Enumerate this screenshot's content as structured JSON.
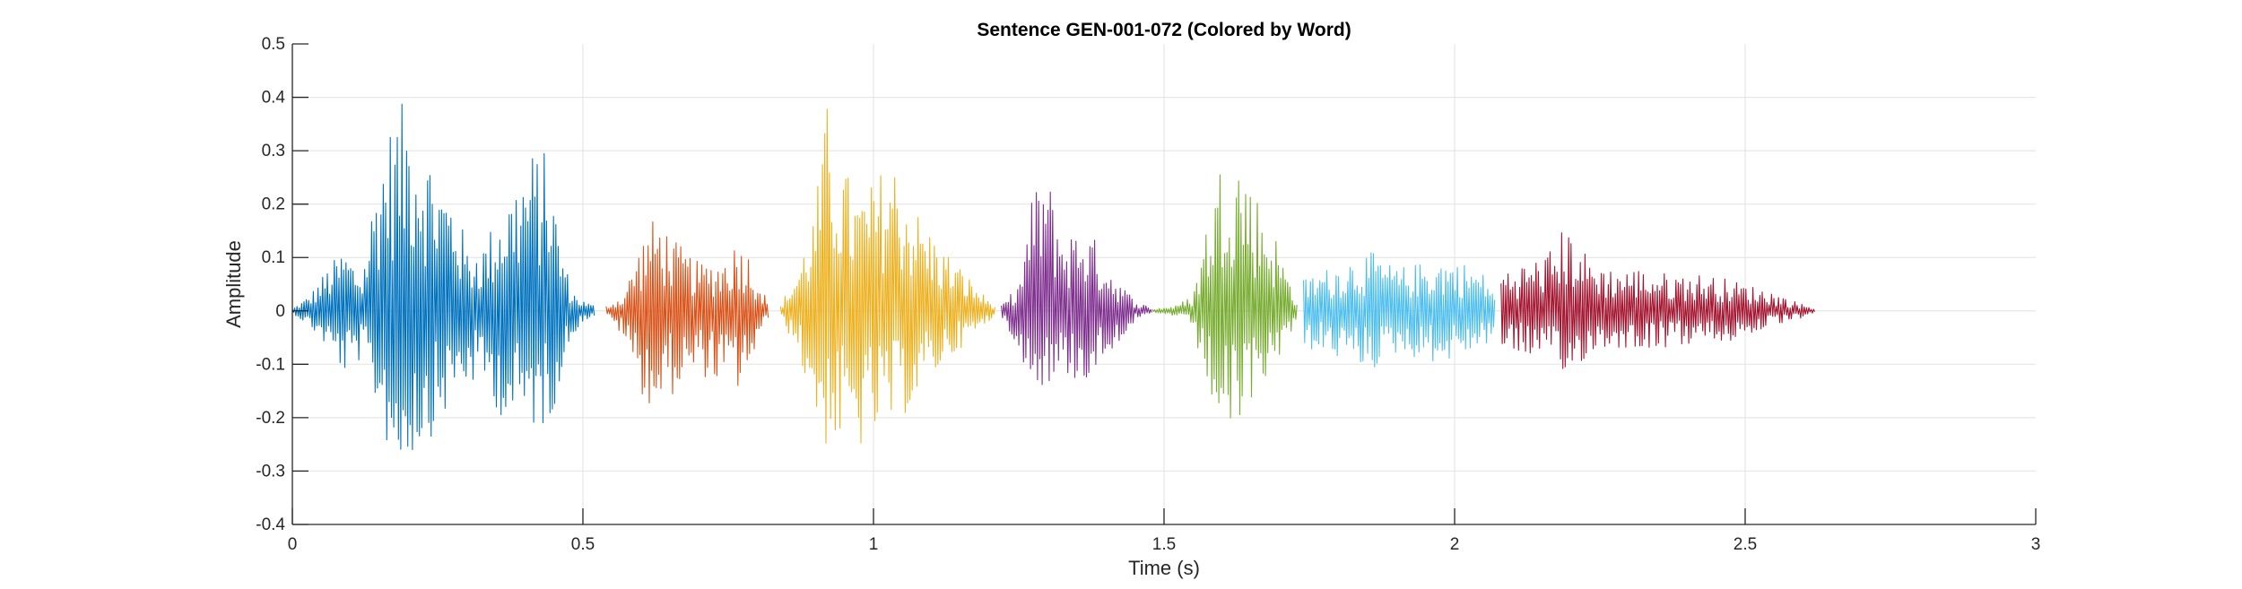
{
  "chart_data": {
    "type": "line",
    "title": "Sentence GEN-001-072 (Colored by Word)",
    "xlabel": "Time (s)",
    "ylabel": "Amplitude",
    "xlim": [
      0,
      3
    ],
    "ylim": [
      -0.4,
      0.5
    ],
    "xticks": [
      0,
      0.5,
      1,
      1.5,
      2,
      2.5,
      3
    ],
    "xtick_labels": [
      "0",
      "0.5",
      "1",
      "1.5",
      "2",
      "2.5",
      "3"
    ],
    "yticks": [
      -0.4,
      -0.3,
      -0.2,
      -0.1,
      0,
      0.1,
      0.2,
      0.3,
      0.4,
      0.5
    ],
    "ytick_labels": [
      "-0.4",
      "-0.3",
      "-0.2",
      "-0.1",
      "0",
      "0.1",
      "0.2",
      "0.3",
      "0.4",
      "0.5"
    ],
    "grid": true,
    "series": [
      {
        "color": "#0072BD",
        "start": 0.0,
        "end": 0.52,
        "envelope_time": [
          0.0,
          0.03,
          0.06,
          0.09,
          0.12,
          0.15,
          0.18,
          0.2,
          0.22,
          0.25,
          0.28,
          0.3,
          0.33,
          0.36,
          0.38,
          0.41,
          0.44,
          0.46,
          0.48,
          0.5,
          0.52
        ],
        "envelope_max": [
          0.004,
          0.03,
          0.08,
          0.12,
          0.07,
          0.3,
          0.38,
          0.4,
          0.35,
          0.26,
          0.22,
          0.12,
          0.13,
          0.2,
          0.24,
          0.3,
          0.3,
          0.14,
          0.04,
          0.02,
          0.01
        ],
        "envelope_min": [
          -0.004,
          -0.03,
          -0.07,
          -0.12,
          -0.09,
          -0.2,
          -0.32,
          -0.28,
          -0.26,
          -0.22,
          -0.16,
          -0.14,
          -0.14,
          -0.2,
          -0.22,
          -0.22,
          -0.22,
          -0.14,
          -0.05,
          -0.02,
          -0.01
        ]
      },
      {
        "color": "#D95319",
        "start": 0.54,
        "end": 0.82,
        "envelope_time": [
          0.54,
          0.57,
          0.59,
          0.61,
          0.63,
          0.66,
          0.7,
          0.74,
          0.77,
          0.79,
          0.81,
          0.82
        ],
        "envelope_max": [
          0.01,
          0.03,
          0.1,
          0.16,
          0.18,
          0.13,
          0.09,
          0.1,
          0.14,
          0.1,
          0.04,
          0.01
        ],
        "envelope_min": [
          -0.01,
          -0.05,
          -0.12,
          -0.18,
          -0.19,
          -0.15,
          -0.12,
          -0.14,
          -0.15,
          -0.1,
          -0.04,
          -0.01
        ]
      },
      {
        "color": "#EDB120",
        "start": 0.84,
        "end": 1.21,
        "envelope_time": [
          0.84,
          0.87,
          0.9,
          0.92,
          0.94,
          0.97,
          1.0,
          1.03,
          1.05,
          1.08,
          1.12,
          1.16,
          1.19,
          1.21
        ],
        "envelope_max": [
          0.01,
          0.08,
          0.2,
          0.39,
          0.3,
          0.22,
          0.24,
          0.3,
          0.25,
          0.18,
          0.12,
          0.07,
          0.03,
          0.01
        ],
        "envelope_min": [
          -0.01,
          -0.08,
          -0.2,
          -0.26,
          -0.25,
          -0.27,
          -0.24,
          -0.22,
          -0.2,
          -0.16,
          -0.1,
          -0.06,
          -0.03,
          -0.01
        ]
      },
      {
        "color": "#7E2F8E",
        "start": 1.22,
        "end": 1.48,
        "envelope_time": [
          1.22,
          1.25,
          1.27,
          1.29,
          1.31,
          1.33,
          1.36,
          1.39,
          1.42,
          1.45,
          1.48
        ],
        "envelope_max": [
          0.01,
          0.05,
          0.2,
          0.28,
          0.22,
          0.14,
          0.17,
          0.12,
          0.06,
          0.02,
          0.005
        ],
        "envelope_min": [
          -0.01,
          -0.07,
          -0.14,
          -0.14,
          -0.14,
          -0.12,
          -0.14,
          -0.1,
          -0.06,
          -0.02,
          -0.005
        ]
      },
      {
        "color": "#77AC30",
        "start": 1.48,
        "end": 1.73,
        "envelope_time": [
          1.48,
          1.52,
          1.55,
          1.57,
          1.59,
          1.61,
          1.63,
          1.66,
          1.69,
          1.71,
          1.73
        ],
        "envelope_max": [
          0.004,
          0.01,
          0.03,
          0.15,
          0.25,
          0.34,
          0.3,
          0.22,
          0.15,
          0.08,
          0.02
        ],
        "envelope_min": [
          -0.004,
          -0.01,
          -0.03,
          -0.14,
          -0.2,
          -0.26,
          -0.22,
          -0.15,
          -0.1,
          -0.06,
          -0.02
        ]
      },
      {
        "color": "#4DBEEE",
        "start": 1.74,
        "end": 2.07,
        "envelope_time": [
          1.74,
          1.78,
          1.82,
          1.86,
          1.9,
          1.94,
          1.98,
          2.02,
          2.05,
          2.07
        ],
        "envelope_max": [
          0.06,
          0.08,
          0.1,
          0.11,
          0.08,
          0.09,
          0.1,
          0.09,
          0.07,
          0.04
        ],
        "envelope_min": [
          -0.07,
          -0.08,
          -0.1,
          -0.11,
          -0.08,
          -0.09,
          -0.1,
          -0.08,
          -0.07,
          -0.04
        ]
      },
      {
        "color": "#A2142F",
        "start": 2.08,
        "end": 2.62,
        "envelope_time": [
          2.08,
          2.12,
          2.16,
          2.19,
          2.21,
          2.23,
          2.27,
          2.32,
          2.37,
          2.42,
          2.47,
          2.5,
          2.54,
          2.58,
          2.62
        ],
        "envelope_max": [
          0.08,
          0.09,
          0.11,
          0.16,
          0.14,
          0.1,
          0.08,
          0.08,
          0.07,
          0.07,
          0.06,
          0.05,
          0.04,
          0.02,
          0.005
        ],
        "envelope_min": [
          -0.07,
          -0.08,
          -0.1,
          -0.14,
          -0.11,
          -0.08,
          -0.07,
          -0.07,
          -0.07,
          -0.06,
          -0.06,
          -0.05,
          -0.03,
          -0.02,
          -0.005
        ]
      }
    ]
  }
}
